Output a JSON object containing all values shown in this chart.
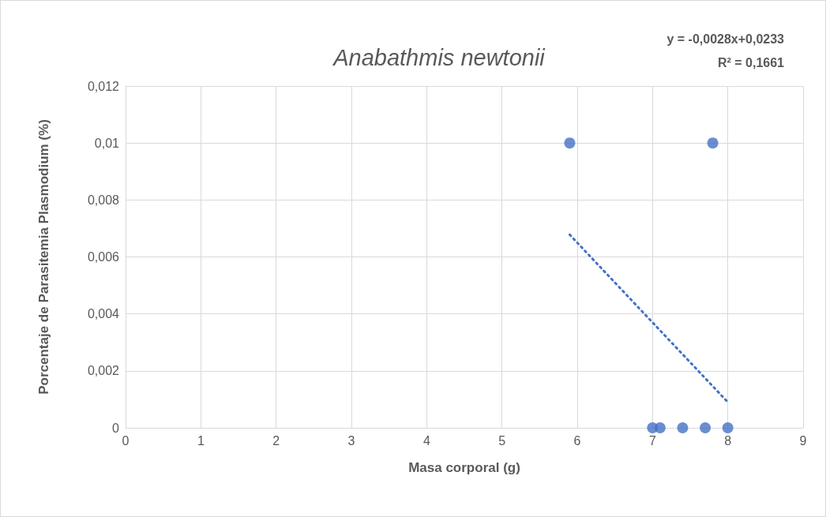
{
  "chart_data": {
    "type": "scatter",
    "title": "Anabathmis newtonii",
    "xlabel": "Masa corporal (g)",
    "ylabel": "Porcentaje de Parasitemia Plasmodium (%)",
    "annotations": [
      "y = -0,0028x+0,0233",
      "R² = 0,1661"
    ],
    "series": [
      {
        "color": "#4472c4",
        "x": [
          5.9,
          7.8,
          7.0,
          7.1,
          7.4,
          7.7,
          8.0
        ],
        "values": [
          0.01,
          0.01,
          0,
          0,
          0,
          0,
          0
        ],
        "marker": "circle"
      },
      {
        "type": "line",
        "color": "#4472c4",
        "x": [
          5.9,
          8.0
        ],
        "values": [
          0.00678,
          0.0009
        ],
        "line_style": "dotted",
        "marker": "none"
      }
    ],
    "xlim": [
      0,
      9
    ],
    "xticks": [
      0,
      1,
      2,
      3,
      4,
      5,
      6,
      7,
      8,
      9
    ],
    "ylim": [
      0,
      0.012
    ],
    "yticks": [
      0,
      {
        "value": 0.002,
        "label": "0,002"
      },
      {
        "value": 0.004,
        "label": "0,004"
      },
      {
        "value": 0.006,
        "label": "0,006"
      },
      {
        "value": 0.008,
        "label": "0,008"
      },
      {
        "value": 0.01,
        "label": "0,01"
      },
      {
        "value": 0.012,
        "label": "0,012"
      }
    ],
    "grid": true
  }
}
